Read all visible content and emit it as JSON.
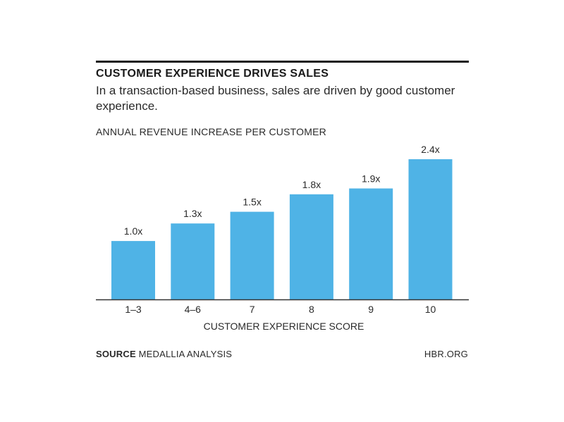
{
  "chart_data": {
    "type": "bar",
    "title": "CUSTOMER EXPERIENCE DRIVES SALES",
    "subtitle": "In a transaction-based business, sales are driven by good customer experience.",
    "ylabel": "ANNUAL REVENUE INCREASE PER CUSTOMER",
    "xlabel": "CUSTOMER EXPERIENCE SCORE",
    "categories": [
      "1–3",
      "4–6",
      "7",
      "8",
      "9",
      "10"
    ],
    "values": [
      1.0,
      1.3,
      1.5,
      1.8,
      1.9,
      2.4
    ],
    "data_labels": [
      "1.0x",
      "1.3x",
      "1.5x",
      "1.8x",
      "1.9x",
      "2.4x"
    ],
    "ylim": [
      0,
      2.4
    ],
    "grid": false,
    "bar_color": "#4fb3e6"
  },
  "footer": {
    "source_label": "SOURCE",
    "source_text": "MEDALLIA ANALYSIS",
    "site": "HBR.ORG"
  }
}
